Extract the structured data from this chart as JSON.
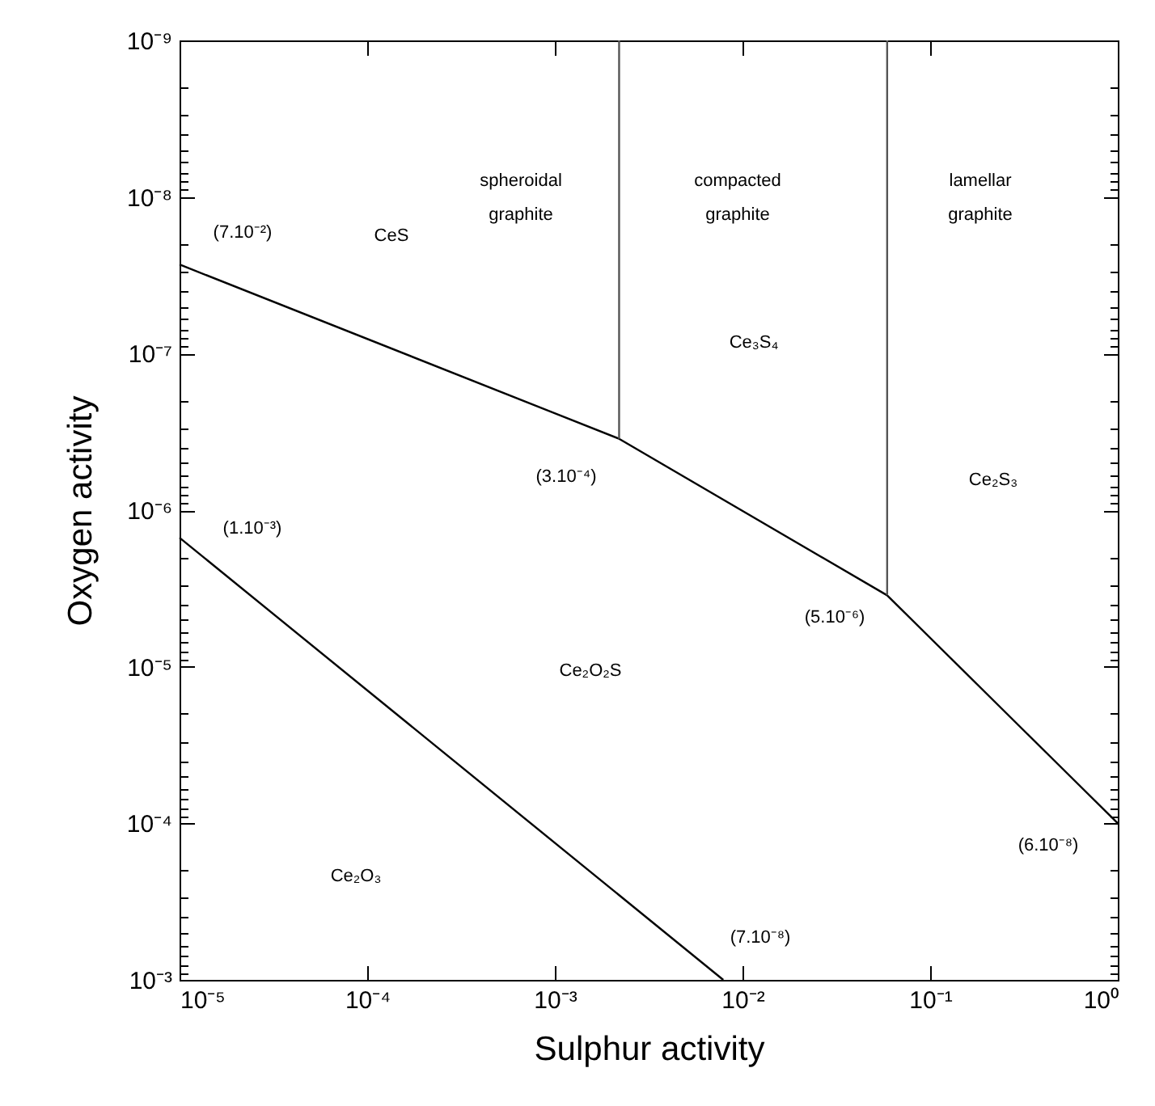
{
  "chart_data": {
    "type": "line",
    "xlabel": "Sulphur activity",
    "ylabel": "Oxygen activity",
    "log": "xy",
    "grid": false,
    "legend": false,
    "marker": "none",
    "line_style": "solid",
    "xlim": [
      1e-05,
      1
    ],
    "ylim": [
      0.001,
      1e-09
    ],
    "xticks": [
      {
        "value": 1e-05,
        "label": "10⁻⁵"
      },
      {
        "value": 0.0001,
        "label": "10⁻⁴"
      },
      {
        "value": 0.001,
        "label": "10⁻³"
      },
      {
        "value": 0.01,
        "label": "10⁻²"
      },
      {
        "value": 0.1,
        "label": "10⁻¹"
      },
      {
        "value": 1,
        "label": "10⁰"
      }
    ],
    "yticks": [
      {
        "value": 1e-09,
        "label": "10⁻⁹"
      },
      {
        "value": 2e-09,
        "label": null
      },
      {
        "value": 3e-09,
        "label": null
      },
      {
        "value": 4e-09,
        "label": null
      },
      {
        "value": 5e-09,
        "label": null
      },
      {
        "value": 6e-09,
        "label": null
      },
      {
        "value": 7e-09,
        "label": null
      },
      {
        "value": 8e-09,
        "label": null
      },
      {
        "value": 9e-09,
        "label": null
      },
      {
        "value": 1e-08,
        "label": "10⁻⁸"
      },
      {
        "value": 2e-08,
        "label": null
      },
      {
        "value": 3e-08,
        "label": null
      },
      {
        "value": 4e-08,
        "label": null
      },
      {
        "value": 5e-08,
        "label": null
      },
      {
        "value": 6e-08,
        "label": null
      },
      {
        "value": 7e-08,
        "label": null
      },
      {
        "value": 8e-08,
        "label": null
      },
      {
        "value": 9e-08,
        "label": null
      },
      {
        "value": 1e-07,
        "label": "10⁻⁷"
      },
      {
        "value": 2e-07,
        "label": null
      },
      {
        "value": 3e-07,
        "label": null
      },
      {
        "value": 4e-07,
        "label": null
      },
      {
        "value": 5e-07,
        "label": null
      },
      {
        "value": 6e-07,
        "label": null
      },
      {
        "value": 7e-07,
        "label": null
      },
      {
        "value": 8e-07,
        "label": null
      },
      {
        "value": 9e-07,
        "label": null
      },
      {
        "value": 1e-06,
        "label": "10⁻⁶"
      },
      {
        "value": 2e-06,
        "label": null
      },
      {
        "value": 3e-06,
        "label": null
      },
      {
        "value": 4e-06,
        "label": null
      },
      {
        "value": 5e-06,
        "label": null
      },
      {
        "value": 6e-06,
        "label": null
      },
      {
        "value": 7e-06,
        "label": null
      },
      {
        "value": 8e-06,
        "label": null
      },
      {
        "value": 9e-06,
        "label": null
      },
      {
        "value": 1e-05,
        "label": "10⁻⁵"
      },
      {
        "value": 2e-05,
        "label": null
      },
      {
        "value": 3e-05,
        "label": null
      },
      {
        "value": 4e-05,
        "label": null
      },
      {
        "value": 5e-05,
        "label": null
      },
      {
        "value": 6e-05,
        "label": null
      },
      {
        "value": 7e-05,
        "label": null
      },
      {
        "value": 8e-05,
        "label": null
      },
      {
        "value": 9e-05,
        "label": null
      },
      {
        "value": 0.0001,
        "label": "10⁻⁴"
      },
      {
        "value": 0.0002,
        "label": null
      },
      {
        "value": 0.0003,
        "label": null
      },
      {
        "value": 0.0004,
        "label": null
      },
      {
        "value": 0.0005,
        "label": null
      },
      {
        "value": 0.0006,
        "label": null
      },
      {
        "value": 0.0007,
        "label": null
      },
      {
        "value": 0.0008,
        "label": null
      },
      {
        "value": 0.0009,
        "label": null
      },
      {
        "value": 0.001,
        "label": "10⁻³"
      }
    ],
    "series": [
      {
        "color": "#000000",
        "x": [
          1e-05,
          0.0022,
          0.059,
          1
        ],
        "values": [
          2.7e-08,
          3.5e-07,
          3.5e-06,
          0.0001
        ]
      },
      {
        "color": "#555555",
        "x": [
          0.0022,
          0.0022
        ],
        "values": [
          1e-09,
          3.5e-07
        ]
      },
      {
        "color": "#555555",
        "x": [
          0.059,
          0.059
        ],
        "values": [
          1e-09,
          3.5e-06
        ]
      },
      {
        "color": "#000000",
        "x": [
          1e-05,
          0.0079
        ],
        "values": [
          1.5e-06,
          0.001
        ]
      }
    ],
    "annotations": [
      "(7.10⁻²)",
      "CeS",
      "spheroidal\ngraphite",
      "compacted\ngraphite",
      "lamellar\ngraphite",
      "Ce₃S₄",
      "(3.10⁻⁴)",
      "Ce₂S₃",
      "(1.10⁻³)",
      "(5.10⁻⁶)",
      "Ce₂O₂S",
      "(6.10⁻⁸)",
      "Ce₂O₃",
      "(7.10⁻⁸)"
    ]
  }
}
